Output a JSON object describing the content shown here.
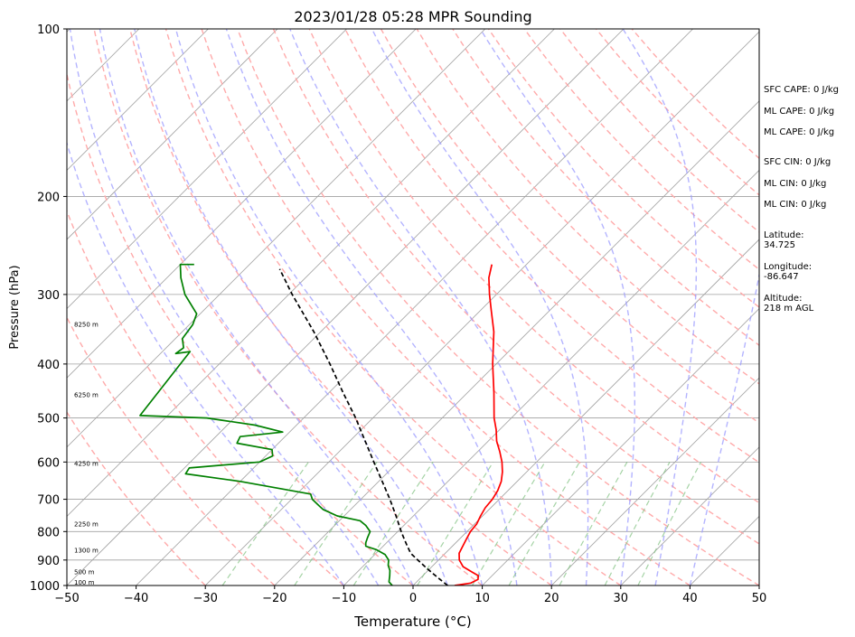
{
  "chart_data": {
    "type": "line",
    "title": "2023/01/28 05:28 MPR Sounding",
    "xlabel": "Temperature (°C)",
    "ylabel": "Pressure (hPa)",
    "xlim": [
      -50,
      50
    ],
    "ylim": [
      1000,
      100
    ],
    "y_scale": "log",
    "x_ticks": [
      -50,
      -40,
      -30,
      -20,
      -10,
      0,
      10,
      20,
      30,
      40,
      50
    ],
    "y_ticks": [
      1000,
      900,
      800,
      700,
      600,
      500,
      400,
      300,
      200,
      100
    ],
    "grid": true,
    "series": [
      {
        "id": "temperature",
        "color": "#ff0000",
        "points": [
          [
            1000,
            6.0
          ],
          [
            990,
            8.0
          ],
          [
            975,
            8.5
          ],
          [
            960,
            8.0
          ],
          [
            945,
            6.5
          ],
          [
            925,
            4.5
          ],
          [
            900,
            3.0
          ],
          [
            875,
            2.0
          ],
          [
            850,
            1.5
          ],
          [
            825,
            1.0
          ],
          [
            800,
            0.5
          ],
          [
            775,
            0.3
          ],
          [
            750,
            -0.3
          ],
          [
            725,
            -0.8
          ],
          [
            700,
            -1.0
          ],
          [
            675,
            -1.5
          ],
          [
            650,
            -2.3
          ],
          [
            625,
            -3.5
          ],
          [
            600,
            -5.0
          ],
          [
            575,
            -6.8
          ],
          [
            550,
            -8.8
          ],
          [
            525,
            -10.5
          ],
          [
            500,
            -12.5
          ],
          [
            450,
            -16.2
          ],
          [
            400,
            -20.5
          ],
          [
            350,
            -25.0
          ],
          [
            320,
            -28.5
          ],
          [
            300,
            -31.0
          ],
          [
            280,
            -33.5
          ],
          [
            265,
            -35.0
          ]
        ]
      },
      {
        "id": "dewpoint",
        "color": "#008000",
        "points": [
          [
            1000,
            -3.0
          ],
          [
            985,
            -4.0
          ],
          [
            960,
            -4.8
          ],
          [
            940,
            -5.5
          ],
          [
            920,
            -6.5
          ],
          [
            900,
            -7.2
          ],
          [
            880,
            -8.5
          ],
          [
            862,
            -10.5
          ],
          [
            850,
            -12.5
          ],
          [
            838,
            -13.0
          ],
          [
            820,
            -13.5
          ],
          [
            800,
            -14.0
          ],
          [
            780,
            -15.5
          ],
          [
            765,
            -17.0
          ],
          [
            750,
            -21.0
          ],
          [
            730,
            -24.0
          ],
          [
            720,
            -25.0
          ],
          [
            700,
            -27.0
          ],
          [
            685,
            -28.0
          ],
          [
            650,
            -40.0
          ],
          [
            630,
            -49.0
          ],
          [
            615,
            -49.3
          ],
          [
            600,
            -40.0
          ],
          [
            585,
            -39.0
          ],
          [
            570,
            -40.0
          ],
          [
            555,
            -46.0
          ],
          [
            540,
            -46.5
          ],
          [
            530,
            -41.0
          ],
          [
            515,
            -46.0
          ],
          [
            500,
            -54.0
          ],
          [
            495,
            -64.0
          ],
          [
            380,
            -66.0
          ],
          [
            383,
            -67.8
          ],
          [
            374,
            -67.5
          ],
          [
            360,
            -69.0
          ],
          [
            340,
            -69.5
          ],
          [
            325,
            -70.5
          ],
          [
            300,
            -75.0
          ],
          [
            280,
            -78.0
          ],
          [
            265,
            -80.0
          ],
          [
            265,
            -78.0
          ]
        ]
      },
      {
        "id": "parcel",
        "color": "#000000",
        "style": "dashed",
        "points": [
          [
            1000,
            5.0
          ],
          [
            975,
            3.0
          ],
          [
            950,
            1.0
          ],
          [
            925,
            -1.0
          ],
          [
            900,
            -3.0
          ],
          [
            875,
            -5.0
          ],
          [
            850,
            -6.5
          ],
          [
            825,
            -8.0
          ],
          [
            800,
            -9.5
          ],
          [
            750,
            -12.5
          ],
          [
            700,
            -15.8
          ],
          [
            650,
            -19.5
          ],
          [
            600,
            -23.5
          ],
          [
            550,
            -27.8
          ],
          [
            500,
            -32.5
          ],
          [
            450,
            -38.0
          ],
          [
            400,
            -44.0
          ],
          [
            350,
            -51.0
          ],
          [
            300,
            -59.5
          ],
          [
            270,
            -65.0
          ]
        ]
      }
    ],
    "height_labels": [
      {
        "text": "100 m",
        "p": 988
      },
      {
        "text": "500 m",
        "p": 948
      },
      {
        "text": "1300 m",
        "p": 866
      },
      {
        "text": "2250 m",
        "p": 777
      },
      {
        "text": "4250 m",
        "p": 605
      },
      {
        "text": "6250 m",
        "p": 455
      },
      {
        "text": "8250 m",
        "p": 340
      }
    ],
    "dry_adiabats_theta_c": [
      -30,
      -20,
      -10,
      0,
      10,
      20,
      30,
      40,
      50,
      60,
      70,
      80,
      90,
      100,
      110,
      120,
      130,
      140,
      150,
      160
    ],
    "moist_adiabats_c": [
      -10,
      -5,
      0,
      5,
      10,
      15,
      20,
      25,
      30,
      35,
      40
    ],
    "mixing_ratio_lines_g_kg": [
      0.4,
      1,
      2,
      4,
      7,
      10,
      16,
      24,
      32
    ],
    "isotherm_step_c": 10,
    "colors": {
      "temperature": "#ff0000",
      "dewpoint": "#008000",
      "parcel": "#000000",
      "isotherm": "#a0a0a0",
      "dry_adiabat": "#ffaaaa",
      "moist_adiabat": "#9b9bff",
      "mixing_ratio": "#7fc07f"
    }
  },
  "side_panel": {
    "sfc_cape": "SFC CAPE: 0 J/kg",
    "ml_cape_1": "ML CAPE: 0 J/kg",
    "ml_cape_2": "ML CAPE: 0 J/kg",
    "sfc_cin": "SFC CIN: 0 J/kg",
    "ml_cin_1": "ML CIN: 0 J/kg",
    "ml_cin_2": "ML CIN: 0 J/kg",
    "latitude_label": "Latitude:",
    "latitude_value": "34.725",
    "longitude_label": "Longitude:",
    "longitude_value": "-86.647",
    "altitude_label": "Altitude:",
    "altitude_value": "218 m AGL"
  }
}
